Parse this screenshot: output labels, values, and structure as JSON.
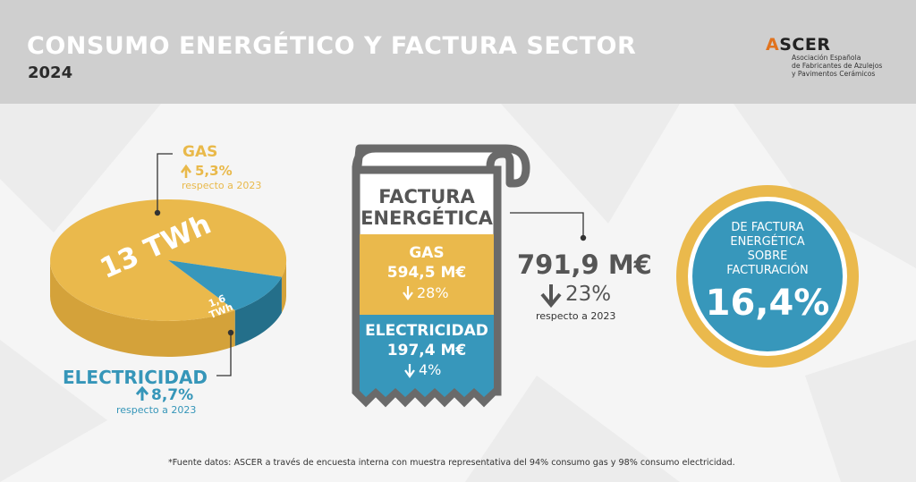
{
  "header": {
    "title": "CONSUMO ENERGÉTICO Y FACTURA SECTOR",
    "year": "2024"
  },
  "logo": {
    "word": "ASCER",
    "lines": [
      "Asociación Española",
      "de Fabricantes de Azulejos",
      "y Pavimentos Cerámicos"
    ]
  },
  "colors": {
    "gold": "#e9b94a",
    "blue": "#3696b9",
    "dark": "#555555"
  },
  "chart_data": {
    "type": "pie",
    "categories": [
      "GAS",
      "ELECTRICIDAD"
    ],
    "values": [
      13,
      1.6
    ],
    "slice_labels": [
      "13 TWh",
      "1,6 TWh"
    ],
    "gas": {
      "name": "GAS",
      "change": "5,3%",
      "compare": "respecto a 2023"
    },
    "electricity": {
      "name": "ELECTRICIDAD",
      "change": "8,7%",
      "compare": "respecto a 2023"
    }
  },
  "invoice": {
    "title_line1": "FACTURA",
    "title_line2": "ENERGÉTICA",
    "gas_label": "GAS",
    "gas_value": "594,5 M€",
    "gas_change": "28%",
    "elec_label": "ELECTRICIDAD",
    "elec_value": "197,4 M€",
    "elec_change": "4%",
    "total": "791,9 M€",
    "total_change": "23%",
    "compare": "respecto a 2023"
  },
  "share": {
    "lines": [
      "DE FACTURA",
      "ENERGÉTICA",
      "SOBRE",
      "FACTURACIÓN"
    ],
    "value": "16,4%"
  },
  "footnote": "*Fuente datos: ASCER a través de encuesta interna con muestra representativa del 94% consumo gas y 98% consumo electricidad."
}
